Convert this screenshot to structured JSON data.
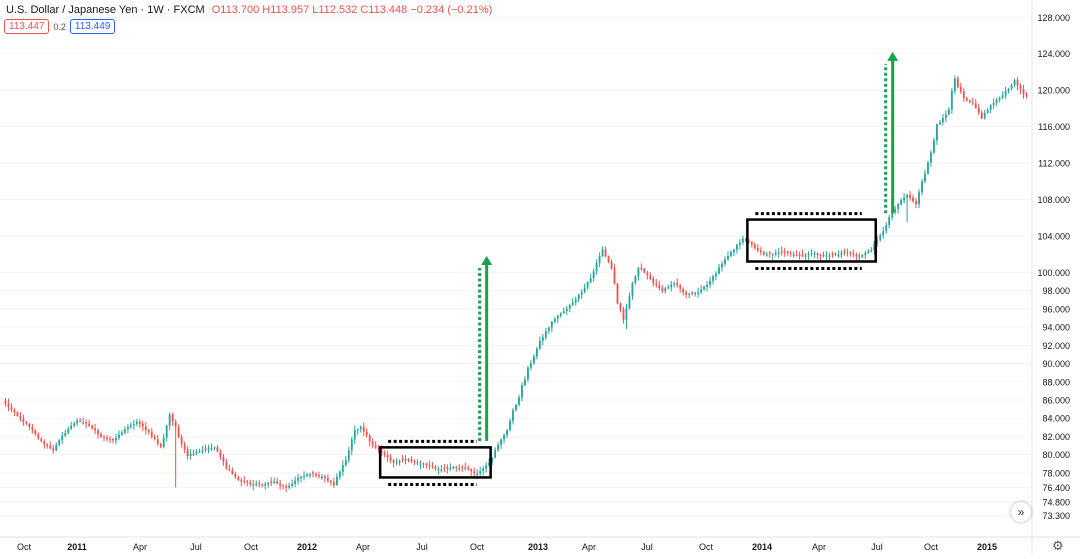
{
  "header": {
    "symbol": "U.S. Dollar / Japanese Yen · 1W · FXCM",
    "ohlc": "O113.700 H113.957 L112.532 C113.448 −0.234 (−0.21%)"
  },
  "badges": {
    "bid": "113.447",
    "spread": "0.2",
    "ask": "113.449"
  },
  "colors": {
    "up": "#26a69a",
    "down": "#ef5350",
    "arrow": "#16a34a",
    "box": "#000000",
    "grid": "#f0f3fa",
    "axis_text": "#131722"
  },
  "icons": {
    "nav": "double-chevron-right-icon",
    "settings": "gear-icon"
  },
  "chart_data": {
    "type": "candlestick",
    "ylim": [
      72.5,
      128.8
    ],
    "y_ticks": [
      "128.000",
      "124.000",
      "120.000",
      "116.000",
      "112.000",
      "108.000",
      "104.000",
      "100.000",
      "98.000",
      "96.000",
      "94.000",
      "92.000",
      "90.000",
      "88.000",
      "86.000",
      "84.000",
      "82.000",
      "80.000",
      "78.000",
      "76.400",
      "74.800",
      "73.300"
    ],
    "x_ticks": [
      "Oct",
      "2011",
      "Apr",
      "Jul",
      "Oct",
      "2012",
      "Apr",
      "Jul",
      "Oct",
      "2013",
      "Apr",
      "Jul",
      "Oct",
      "2014",
      "Apr",
      "Jul",
      "Oct",
      "2015"
    ],
    "close_path": [
      [
        0,
        85.6
      ],
      [
        4,
        84.2
      ],
      [
        8,
        83.0
      ],
      [
        12,
        81.4
      ],
      [
        16,
        80.5
      ],
      [
        20,
        82.5
      ],
      [
        24,
        83.8
      ],
      [
        28,
        83.2
      ],
      [
        32,
        82.0
      ],
      [
        36,
        81.5
      ],
      [
        40,
        82.8
      ],
      [
        44,
        83.6
      ],
      [
        48,
        82.5
      ],
      [
        52,
        80.8
      ],
      [
        55,
        84.5
      ],
      [
        58,
        82.0
      ],
      [
        61,
        80.0
      ],
      [
        65,
        80.4
      ],
      [
        70,
        80.8
      ],
      [
        74,
        78.6
      ],
      [
        78,
        77.2
      ],
      [
        82,
        76.8
      ],
      [
        86,
        76.7
      ],
      [
        90,
        77.0
      ],
      [
        94,
        76.3
      ],
      [
        98,
        77.4
      ],
      [
        102,
        77.9
      ],
      [
        106,
        77.6
      ],
      [
        110,
        76.7
      ],
      [
        114,
        79.6
      ],
      [
        117,
        82.5
      ],
      [
        119,
        83.0
      ],
      [
        122,
        81.5
      ],
      [
        126,
        80.2
      ],
      [
        130,
        79.1
      ],
      [
        134,
        79.5
      ],
      [
        138,
        79.1
      ],
      [
        142,
        78.8
      ],
      [
        146,
        78.3
      ],
      [
        150,
        78.6
      ],
      [
        154,
        78.5
      ],
      [
        158,
        77.9
      ],
      [
        162,
        79.2
      ],
      [
        165,
        81.0
      ],
      [
        168,
        82.8
      ],
      [
        172,
        86.5
      ],
      [
        176,
        90.2
      ],
      [
        180,
        93.0
      ],
      [
        184,
        95.0
      ],
      [
        188,
        96.0
      ],
      [
        192,
        97.5
      ],
      [
        196,
        99.4
      ],
      [
        200,
        102.5
      ],
      [
        203,
        100.5
      ],
      [
        205,
        96.8
      ],
      [
        207,
        94.5
      ],
      [
        209,
        97.5
      ],
      [
        212,
        100.8
      ],
      [
        216,
        99.2
      ],
      [
        220,
        98.0
      ],
      [
        224,
        98.8
      ],
      [
        228,
        97.5
      ],
      [
        232,
        97.8
      ],
      [
        236,
        99.0
      ],
      [
        240,
        101.0
      ],
      [
        244,
        102.5
      ],
      [
        247,
        103.8
      ],
      [
        250,
        103.0
      ],
      [
        254,
        101.9
      ],
      [
        258,
        102.1
      ],
      [
        262,
        102.2
      ],
      [
        266,
        101.8
      ],
      [
        270,
        102.1
      ],
      [
        274,
        101.8
      ],
      [
        278,
        101.9
      ],
      [
        282,
        102.2
      ],
      [
        286,
        101.7
      ],
      [
        290,
        102.5
      ],
      [
        293,
        104.0
      ],
      [
        296,
        106.0
      ],
      [
        299,
        107.5
      ],
      [
        302,
        108.5
      ],
      [
        305,
        107.5
      ],
      [
        308,
        111.0
      ],
      [
        312,
        116.0
      ],
      [
        316,
        118.0
      ],
      [
        318,
        121.0
      ],
      [
        321,
        119.0
      ],
      [
        324,
        118.5
      ],
      [
        327,
        117.0
      ],
      [
        330,
        118.3
      ],
      [
        334,
        119.5
      ],
      [
        338,
        121.0
      ],
      [
        342,
        119.2
      ]
    ],
    "annotations": [
      {
        "type": "consolidation_box",
        "label": "range-1",
        "start": 126,
        "end": 162,
        "low": 77.5,
        "high": 80.8
      },
      {
        "type": "consolidation_box",
        "label": "range-2",
        "start": 249,
        "end": 291,
        "low": 101.2,
        "high": 105.8
      }
    ],
    "arrows": [
      {
        "x": 161,
        "from": 81.5,
        "to": 101.8
      },
      {
        "x": 297,
        "from": 106.5,
        "to": 124.2
      }
    ]
  }
}
